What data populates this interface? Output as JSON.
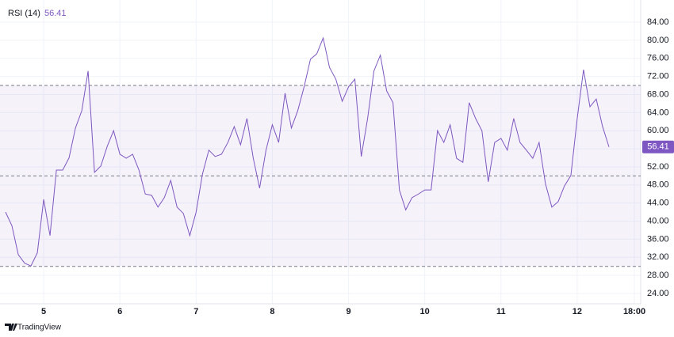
{
  "chart_data": {
    "type": "line",
    "title": "RSI (14)",
    "x": [
      4.5,
      4.583,
      4.667,
      4.75,
      4.833,
      4.917,
      5,
      5.083,
      5.167,
      5.25,
      5.333,
      5.417,
      5.5,
      5.583,
      5.667,
      5.75,
      5.833,
      5.917,
      6,
      6.083,
      6.167,
      6.25,
      6.333,
      6.417,
      6.5,
      6.583,
      6.667,
      6.75,
      6.833,
      6.917,
      7,
      7.083,
      7.167,
      7.25,
      7.333,
      7.417,
      7.5,
      7.583,
      7.667,
      7.75,
      7.833,
      7.917,
      8,
      8.083,
      8.167,
      8.25,
      8.333,
      8.417,
      8.5,
      8.583,
      8.667,
      8.75,
      8.833,
      8.917,
      9,
      9.083,
      9.167,
      9.25,
      9.333,
      9.417,
      9.5,
      9.583,
      9.667,
      9.75,
      9.833,
      9.917,
      10,
      10.083,
      10.167,
      10.25,
      10.333,
      10.417,
      10.5,
      10.583,
      10.667,
      10.75,
      10.833,
      10.917,
      11,
      11.083,
      11.167,
      11.25,
      11.333,
      11.417,
      11.5,
      11.583,
      11.667,
      11.75,
      11.833,
      11.917,
      12,
      12.083,
      12.167,
      12.25,
      12.333,
      12.417
    ],
    "series": [
      {
        "name": "RSI (14)",
        "color": "#7e57c2",
        "values": [
          42,
          39,
          32.6,
          30.7,
          30.1,
          33,
          44.8,
          36.8,
          51.3,
          51.3,
          54,
          60.6,
          64.4,
          73.2,
          50.8,
          52.2,
          56.5,
          60,
          54.8,
          53.9,
          54.8,
          51.3,
          46,
          45.7,
          43.1,
          45.2,
          49,
          43.1,
          41.7,
          36.8,
          42,
          50.4,
          55.7,
          54.3,
          54.8,
          57.4,
          60.9,
          56.9,
          62.7,
          53.9,
          47.3,
          55.7,
          61.3,
          57.4,
          68.3,
          60.6,
          64.4,
          69.7,
          75.8,
          77,
          80.5,
          74,
          71.4,
          66.5,
          69.7,
          71.4,
          54.3,
          62.7,
          73.2,
          76.7,
          68.8,
          66.2,
          46.9,
          42.5,
          45.2,
          46,
          46.9,
          46.9,
          60,
          57.4,
          61.3,
          53.9,
          53,
          66.2,
          62.7,
          60,
          48.7,
          57.4,
          58.3,
          55.7,
          62.7,
          57.4,
          55.7,
          53.9,
          57.4,
          48.3,
          43.1,
          44.3,
          47.8,
          50.1,
          62.7,
          73.5,
          65.3,
          67,
          60.9,
          56.41
        ]
      }
    ],
    "band_levels": [
      70,
      50,
      30
    ],
    "band_color": "#7e57c2",
    "xlim": [
      4.427,
      12.833
    ],
    "xticks": [
      5,
      6,
      7,
      8,
      9,
      10,
      11,
      12,
      {
        "value": 12.75,
        "label": "18:00"
      }
    ],
    "ylim": [
      21.73,
      88.9
    ],
    "yticks": [
      {
        "value": 24,
        "label": "24.00"
      },
      {
        "value": 28,
        "label": "28.00"
      },
      {
        "value": 32,
        "label": "32.00"
      },
      {
        "value": 36,
        "label": "36.00"
      },
      {
        "value": 40,
        "label": "40.00"
      },
      {
        "value": 44,
        "label": "44.00"
      },
      {
        "value": 48,
        "label": "48.00"
      },
      {
        "value": 52,
        "label": "52.00"
      },
      {
        "value": 56,
        "label": "56.00"
      },
      {
        "value": 60,
        "label": "60.00"
      },
      {
        "value": 64,
        "label": "64.00"
      },
      {
        "value": 68,
        "label": "68.00"
      },
      {
        "value": 72,
        "label": "72.00"
      },
      {
        "value": 76,
        "label": "76.00"
      },
      {
        "value": 80,
        "label": "80.00"
      },
      {
        "value": 84,
        "label": "84.00"
      }
    ],
    "grid": true
  },
  "branding": "TradingView"
}
